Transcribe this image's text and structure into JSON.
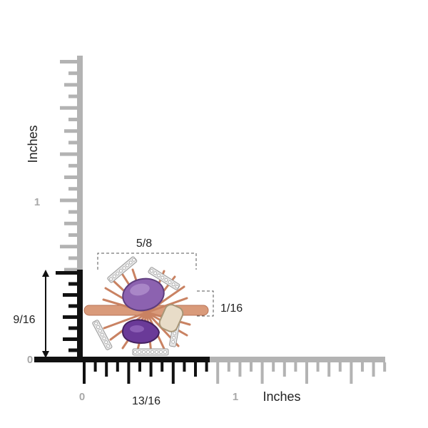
{
  "ruler": {
    "unit_label_vertical": "Inches",
    "unit_label_horizontal": "Inches",
    "vertical_tick_one": "1",
    "vertical_tick_zero": "0",
    "horizontal_tick_zero": "0",
    "horizontal_tick_one": "1"
  },
  "dimensions": {
    "width": "5/8",
    "height": "9/16",
    "band_thickness": "1/16",
    "footprint_width": "13/16"
  },
  "product": {
    "metal_color": "#d99a7a",
    "stone_colors": [
      "#8c62b0",
      "#6a3a98",
      "#e8dcc8"
    ],
    "accent_color": "#e6e6e6"
  },
  "colors": {
    "ruler_black": "#111111",
    "ruler_gray": "#b3b3b3",
    "guide": "#555555"
  }
}
